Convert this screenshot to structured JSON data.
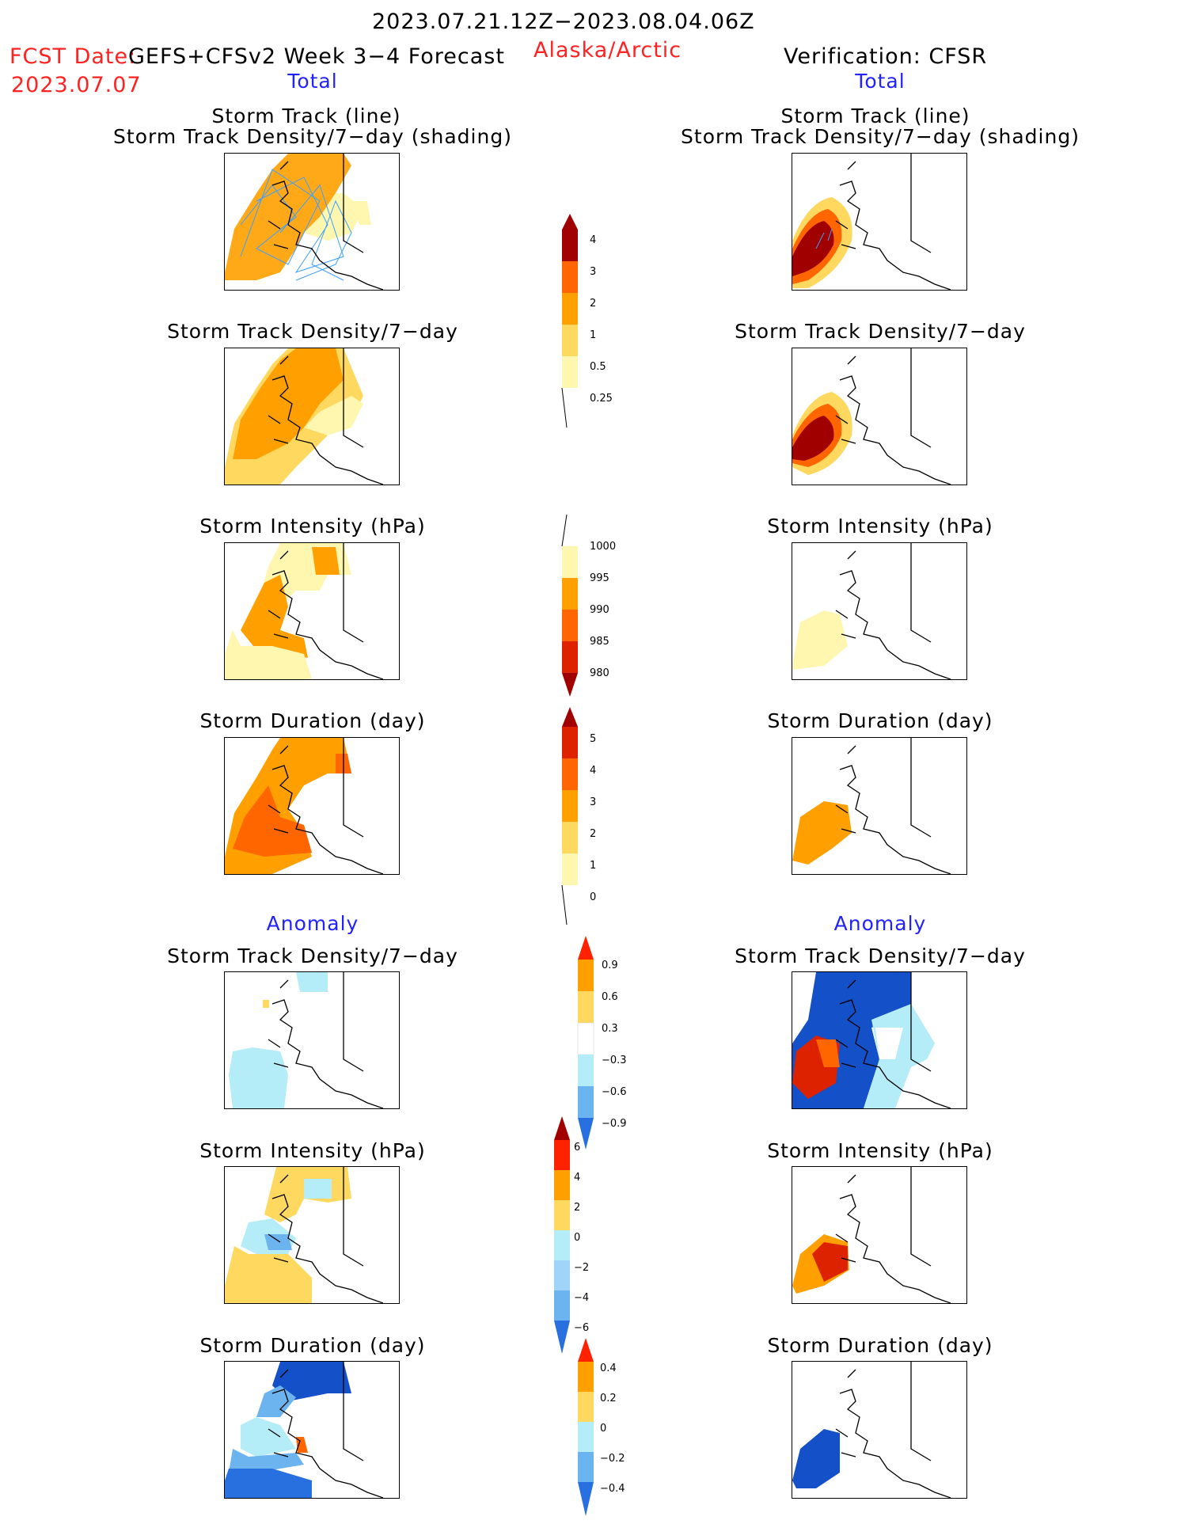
{
  "header": {
    "period": "2023.07.21.12Z−2023.08.04.06Z",
    "fcst_label": "FCST Date:",
    "fcst_model": "GEFS+CFSv2 Week 3−4 Forecast",
    "fcst_date": "2023.07.07",
    "region": "Alaska/Arctic",
    "verification": "Verification: CFSR",
    "total_left": "Total",
    "total_right": "Total",
    "anomaly_left": "Anomaly",
    "anomaly_right": "Anomaly"
  },
  "panels": {
    "track_line": "Storm Track (line)",
    "track_shading": "Storm Track Density/7−day (shading)",
    "track_density": "Storm Track Density/7−day",
    "intensity": "Storm Intensity (hPa)",
    "duration": "Storm Duration (day)"
  },
  "colorbars": {
    "density_total": [
      "4",
      "3",
      "2",
      "1",
      "0.5",
      "0.25"
    ],
    "intensity_total": [
      "1000",
      "995",
      "990",
      "985",
      "980"
    ],
    "duration_total": [
      "5",
      "4",
      "3",
      "2",
      "1",
      "0"
    ],
    "density_anom": [
      "0.9",
      "0.6",
      "0.3",
      "−0.3",
      "−0.6",
      "−0.9"
    ],
    "intensity_anom": [
      "6",
      "4",
      "2",
      "0",
      "−2",
      "−4",
      "−6"
    ],
    "duration_anom": [
      "0.4",
      "0.2",
      "0",
      "−0.2",
      "−0.4"
    ]
  },
  "colors": {
    "title_red": "#ff2222",
    "title_blue": "#2222ff",
    "light_yellow": "#fff6b0",
    "yellow": "#ffd860",
    "orange": "#ffa000",
    "dark_orange": "#ff6600",
    "red": "#dd2200",
    "dark_red": "#a00000",
    "light_blue": "#b4ecf8",
    "mid_blue": "#6cb4f0",
    "blue": "#2870e0",
    "dark_blue": "#1450c8"
  }
}
